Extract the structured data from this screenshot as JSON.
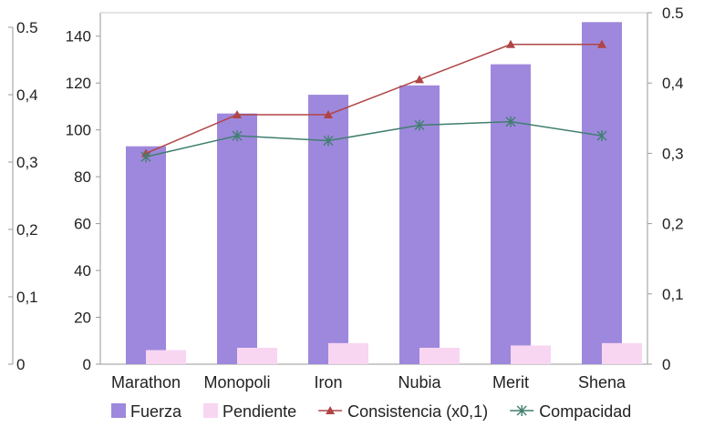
{
  "chart_data": {
    "type": "bar",
    "categories": [
      "Marathon",
      "Monopoli",
      "Iron",
      "Nubia",
      "Merit",
      "Shena"
    ],
    "series": [
      {
        "name": "Fuerza",
        "kind": "bar",
        "axis": "primary",
        "color": "#9e88dd",
        "values": [
          93,
          107,
          115,
          119,
          128,
          146
        ]
      },
      {
        "name": "Pendiente",
        "kind": "bar",
        "axis": "primary",
        "color": "#f8d6f2",
        "values": [
          6,
          7,
          9,
          7,
          8,
          9
        ]
      },
      {
        "name": "Consistencia (x0,1)",
        "kind": "line",
        "axis": "secondary",
        "color": "#b04545",
        "marker": "triangle",
        "values": [
          0.3,
          0.355,
          0.355,
          0.405,
          0.455,
          0.455
        ]
      },
      {
        "name": "Compacidad",
        "kind": "line",
        "axis": "secondary",
        "color": "#3f7f6f",
        "marker": "x",
        "values": [
          0.295,
          0.325,
          0.318,
          0.34,
          0.345,
          0.325
        ]
      }
    ],
    "primary_axis": {
      "ylim": [
        0,
        150
      ],
      "ticks": [
        "0",
        "20",
        "40",
        "60",
        "80",
        "100",
        "120",
        "140"
      ]
    },
    "secondary_axis": {
      "ylim": [
        0,
        0.5
      ],
      "ticks": [
        "0",
        "0,1",
        "0,2",
        "0,3",
        "0,4",
        "0.5"
      ]
    },
    "far_left_axis": {
      "ticks": [
        "0",
        "0,1",
        "0,2",
        "0,3",
        "0,4",
        "0.5"
      ]
    },
    "grid": false,
    "legend": "bottom"
  }
}
